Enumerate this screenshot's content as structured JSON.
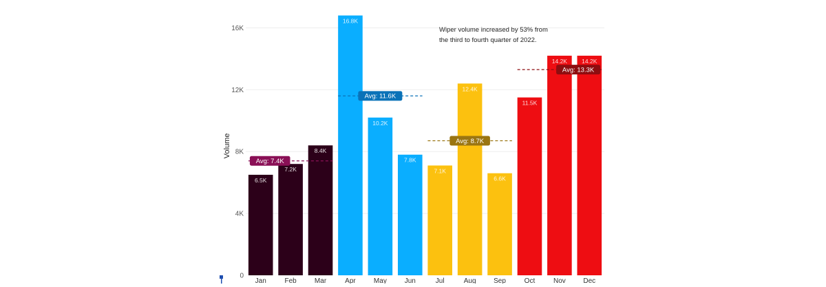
{
  "chart_data": {
    "type": "bar",
    "ylabel": "Volume",
    "ylim": [
      0,
      17000
    ],
    "yticks": [
      0,
      4000,
      8000,
      12000,
      16000
    ],
    "ytick_labels": [
      "0",
      "4K",
      "8K",
      "12K",
      "16K"
    ],
    "grid": true,
    "categories": [
      "Jan",
      "Feb",
      "Mar",
      "Apr",
      "May",
      "Jun",
      "Jul",
      "Aug",
      "Sep",
      "Oct",
      "Nov",
      "Dec"
    ],
    "values": [
      6500,
      7200,
      8400,
      16800,
      10200,
      7800,
      7100,
      12400,
      6600,
      11500,
      14200,
      14200
    ],
    "value_labels": [
      "6.5K",
      "7.2K",
      "8.4K",
      "16.8K",
      "10.2K",
      "7.8K",
      "7.1K",
      "12.4K",
      "6.6K",
      "11.5K",
      "14.2K",
      "14.2K"
    ],
    "groups": [
      {
        "categories": [
          "Jan",
          "Feb",
          "Mar"
        ],
        "color": "#2c0019",
        "avg": 7400,
        "avg_label": "Avg: 7.4K",
        "avg_color": "#8a1056"
      },
      {
        "categories": [
          "Apr",
          "May",
          "Jun"
        ],
        "color": "#0aaeff",
        "avg": 11600,
        "avg_label": "Avg: 11.6K",
        "avg_color": "#0a72b8"
      },
      {
        "categories": [
          "Jul",
          "Aug",
          "Sep"
        ],
        "color": "#fcc10f",
        "avg": 8700,
        "avg_label": "Avg: 8.7K",
        "avg_color": "#9a7512"
      },
      {
        "categories": [
          "Oct",
          "Nov",
          "Dec"
        ],
        "color": "#ee0d12",
        "avg": 13300,
        "avg_label": "Avg: 13.3K",
        "avg_color": "#8e0d10"
      }
    ],
    "annotation": [
      "Wiper volume increased by 53% from",
      "the third to fourth quarter of 2022."
    ]
  }
}
